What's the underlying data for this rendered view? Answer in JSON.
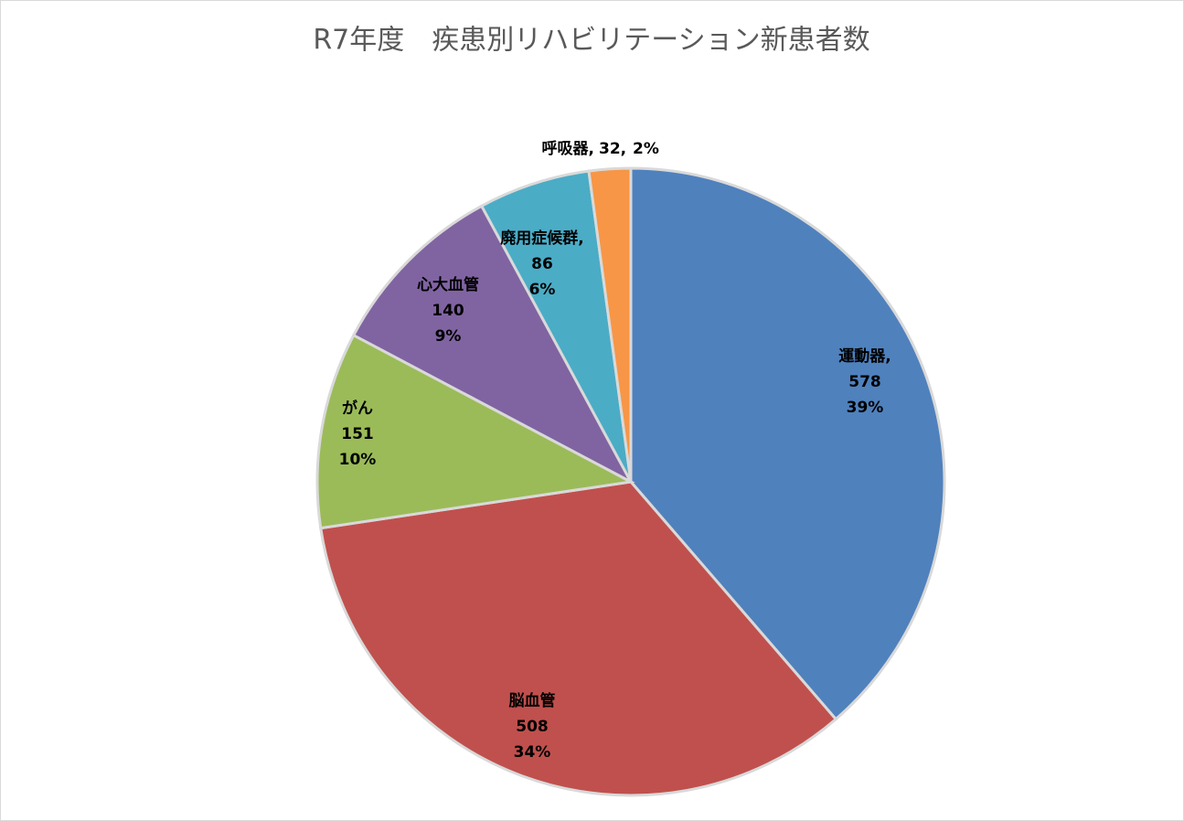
{
  "chart_data": {
    "type": "pie",
    "title": "R7年度　疾患別リハビリテーション新患者数",
    "categories": [
      "運動器,",
      "脳血管",
      "がん",
      "心大血管",
      "廃用症候群,",
      "呼吸器,"
    ],
    "values": [
      578,
      508,
      151,
      140,
      86,
      32
    ],
    "value_labels": [
      "578",
      "508",
      "151",
      "140",
      "86",
      "32,"
    ],
    "percents": [
      39,
      34,
      10,
      9,
      6,
      2
    ],
    "percent_labels": [
      "39%",
      "34%",
      "10%",
      "9%",
      "6%",
      "2%"
    ],
    "colors": [
      "#4f81bd",
      "#c0504d",
      "#9bbb59",
      "#8064a2",
      "#4bacc6",
      "#f79646"
    ]
  }
}
